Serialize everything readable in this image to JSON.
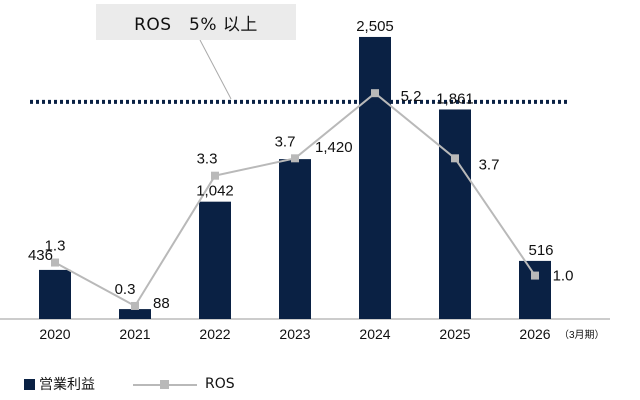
{
  "callout": {
    "text": "ROS　5% 以上"
  },
  "colors": {
    "bar": "#0a2144",
    "line": "#b9b9b9",
    "threshold": "#0a2144",
    "axis": "#999999"
  },
  "chart_data": {
    "type": "bar",
    "categories": [
      "2020",
      "2021",
      "2022",
      "2023",
      "2024",
      "2025",
      "2026"
    ],
    "category_suffix": [
      "",
      "",
      "",
      "",
      "",
      "",
      "（3月期）"
    ],
    "series": [
      {
        "name": "営業利益",
        "type": "bar",
        "values": [
          436,
          88,
          1042,
          1420,
          2505,
          1861,
          516
        ],
        "labels": [
          "436",
          "88",
          "1,042",
          "1,420",
          "2,505",
          "1,861",
          "516"
        ]
      },
      {
        "name": "ROS",
        "type": "line",
        "values": [
          1.3,
          0.3,
          3.3,
          3.7,
          5.2,
          3.7,
          1.0
        ],
        "labels": [
          "1.3",
          "0.3",
          "3.3",
          "3.7",
          "5.2",
          "3.7",
          "1.0"
        ]
      }
    ],
    "threshold": {
      "series": "ROS",
      "value": 5.0
    },
    "legend": [
      "営業利益",
      "ROS"
    ],
    "legend_position": "bottom-left",
    "bar_ylim": [
      0,
      2700
    ],
    "line_ylim": [
      0,
      7.0
    ],
    "grid": false
  }
}
